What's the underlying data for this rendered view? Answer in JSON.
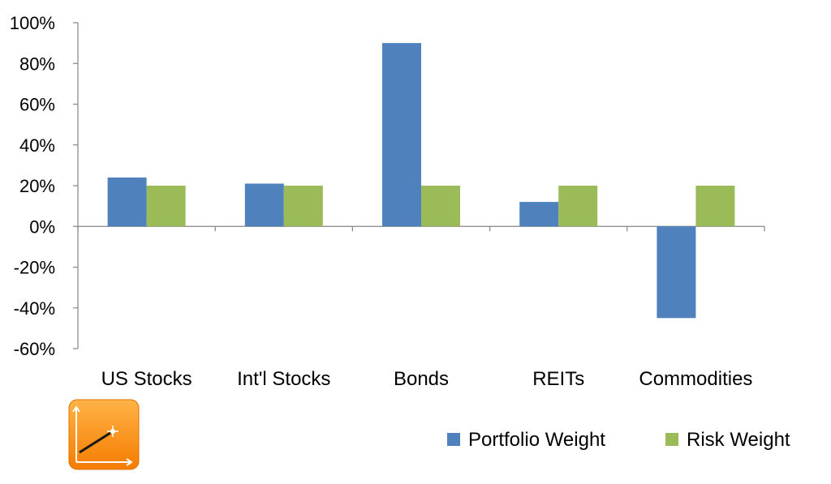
{
  "chart_data": {
    "type": "bar",
    "categories": [
      "US Stocks",
      "Int'l Stocks",
      "Bonds",
      "REITs",
      "Commodities"
    ],
    "series": [
      {
        "name": "Portfolio Weight",
        "color": "#4F81BD",
        "values": [
          24,
          21,
          90,
          12,
          -45
        ]
      },
      {
        "name": "Risk Weight",
        "color": "#9BBB59",
        "values": [
          20,
          20,
          20,
          20,
          20
        ]
      }
    ],
    "ylim": [
      -60,
      100
    ],
    "yticks": [
      "100%",
      "80%",
      "60%",
      "40%",
      "20%",
      "0%",
      "-20%",
      "-40%",
      "-60%"
    ],
    "ytick_values": [
      100,
      80,
      60,
      40,
      20,
      0,
      -20,
      -40,
      -60
    ],
    "grid": false,
    "legend_position": "bottom-right"
  },
  "logo_icon": "chart-line-up-icon"
}
